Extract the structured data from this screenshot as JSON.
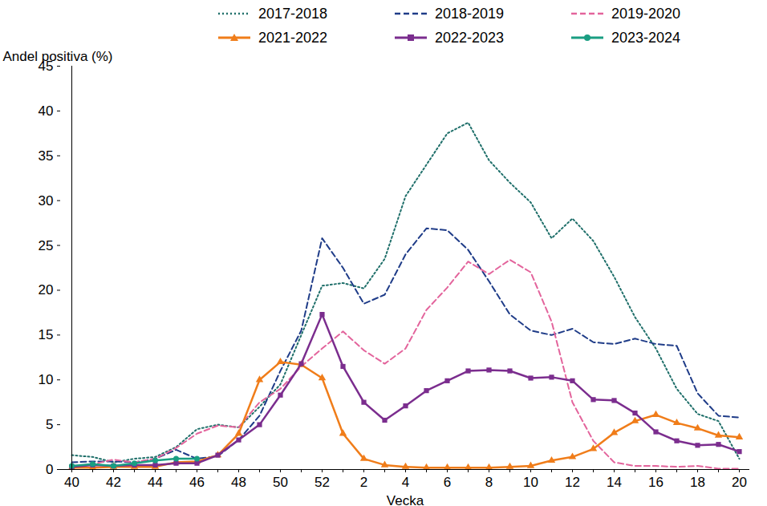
{
  "chart_data": {
    "type": "line",
    "x_label": "Vecka",
    "y_label": "Andel positiva (%)",
    "categories": [
      40,
      null,
      42,
      null,
      44,
      null,
      46,
      null,
      48,
      null,
      50,
      null,
      52,
      null,
      2,
      null,
      4,
      null,
      6,
      null,
      8,
      null,
      10,
      null,
      12,
      null,
      14,
      null,
      16,
      null,
      18,
      null,
      20
    ],
    "ylim": [
      0,
      45
    ],
    "yticks": [
      0,
      5,
      10,
      15,
      20,
      25,
      30,
      35,
      40,
      45
    ],
    "grid": false,
    "legend": "top",
    "series": [
      {
        "name": "2017-2018",
        "color": "#1f6f6a",
        "line_style": "dotted",
        "marker": "none",
        "values": [
          1.6,
          1.4,
          0.8,
          1.2,
          1.4,
          2.5,
          4.5,
          5.0,
          4.7,
          7.0,
          9.5,
          15,
          20.5,
          20.8,
          20.2,
          23.5,
          30.5,
          34,
          37.5,
          38.7,
          34.5,
          32,
          29.8,
          25.8,
          28,
          25.5,
          21.5,
          17,
          13.5,
          9,
          6.2,
          5.4,
          1.2
        ]
      },
      {
        "name": "2018-2019",
        "color": "#1f3c88",
        "line_style": "dashed",
        "marker": "none",
        "values": [
          0.8,
          0.9,
          0.9,
          0.8,
          1.2,
          2.2,
          1.2,
          1.5,
          3.3,
          6,
          11,
          15.5,
          25.8,
          22.5,
          18.5,
          19.5,
          24,
          26.9,
          26.7,
          24.5,
          21,
          17.3,
          15.5,
          15,
          15.7,
          14.2,
          14,
          14.6,
          14,
          13.8,
          8.5,
          6,
          5.8
        ]
      },
      {
        "name": "2019-2020",
        "color": "#e3649c",
        "line_style": "dashed",
        "marker": "none",
        "values": [
          0.3,
          0.6,
          1.1,
          0.8,
          1.2,
          2.4,
          4,
          4.9,
          4.7,
          7.5,
          9,
          11.5,
          13.5,
          15.4,
          13.3,
          11.8,
          13.5,
          17.8,
          20.3,
          23.2,
          21.8,
          23.4,
          22,
          16.5,
          7.5,
          3.2,
          0.8,
          0.4,
          0.4,
          0.3,
          0.4,
          0.1,
          0.1
        ]
      },
      {
        "name": "2021-2022",
        "color": "#f07d1a",
        "line_style": "solid",
        "marker": "triangle",
        "values": [
          0.2,
          0.2,
          0.3,
          0.3,
          0.3,
          0.8,
          0.9,
          1.6,
          4,
          10,
          12,
          11.7,
          10.2,
          4,
          1.2,
          0.5,
          0.3,
          0.2,
          0.2,
          0.2,
          0.2,
          0.3,
          0.4,
          1,
          1.4,
          2.3,
          4.1,
          5.4,
          6.1,
          5.2,
          4.6,
          3.8,
          3.6
        ]
      },
      {
        "name": "2022-2023",
        "color": "#7b2d8e",
        "line_style": "solid",
        "marker": "square",
        "values": [
          0.3,
          0.5,
          0.4,
          0.5,
          0.5,
          0.7,
          0.7,
          1.6,
          3.3,
          5,
          8.3,
          11.8,
          17.3,
          11.5,
          7.5,
          5.5,
          7.1,
          8.8,
          9.9,
          11,
          11.1,
          11,
          10.2,
          10.3,
          9.9,
          7.8,
          7.7,
          6.3,
          4.2,
          3.2,
          2.7,
          2.8,
          2
        ]
      },
      {
        "name": "2023-2024",
        "color": "#1a9e82",
        "line_style": "solid",
        "marker": "circle",
        "values": [
          0.4,
          0.6,
          0.4,
          0.7,
          1.0,
          1.2,
          1.2,
          null,
          null,
          null,
          null,
          null,
          null,
          null,
          null,
          null,
          null,
          null,
          null,
          null,
          null,
          null,
          null,
          null,
          null,
          null,
          null,
          null,
          null,
          null,
          null,
          null,
          null
        ]
      }
    ]
  }
}
